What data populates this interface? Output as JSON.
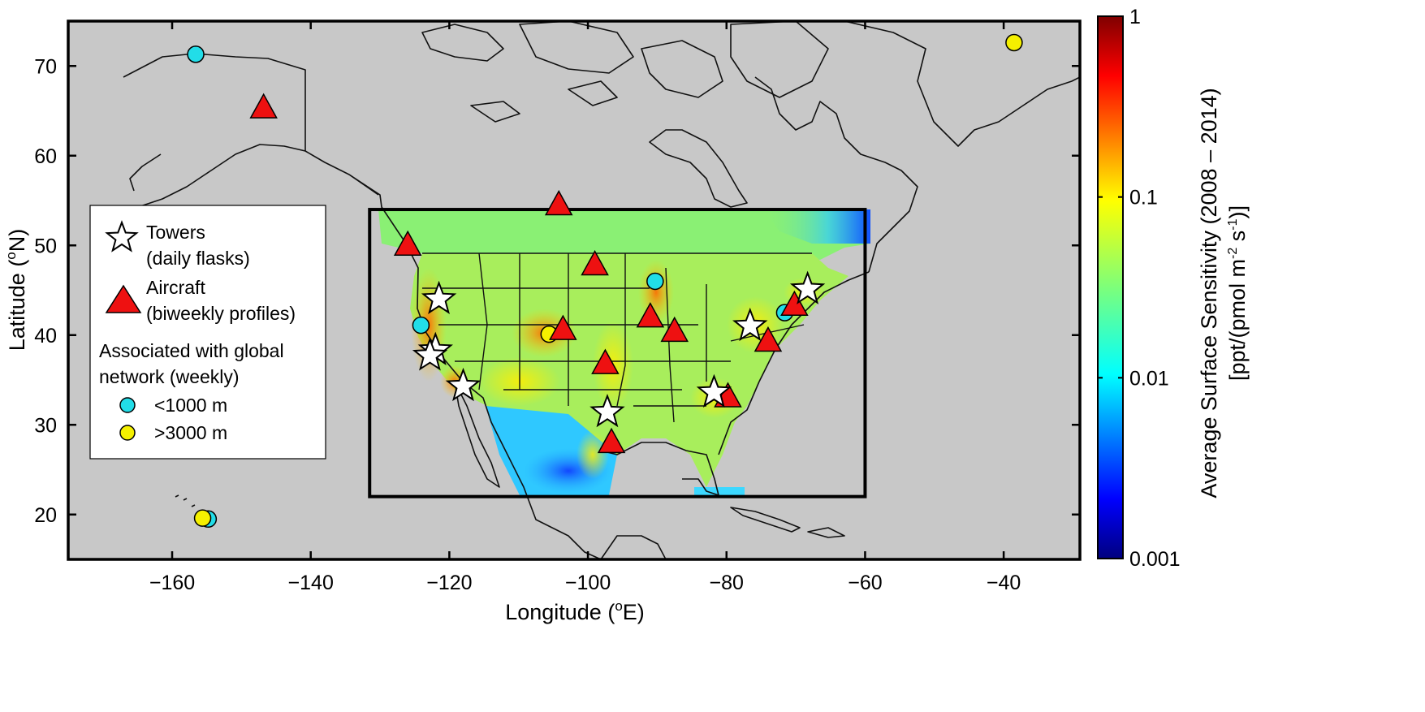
{
  "map": {
    "xaxis": {
      "title_pre": "Longitude (",
      "title_sup": "o",
      "title_post": "E)",
      "ticks": [
        -160,
        -140,
        -120,
        -100,
        -80,
        -60,
        -40
      ],
      "tick_labels": [
        "−160",
        "−140",
        "−120",
        "−100",
        "−80",
        "−60",
        "−40"
      ],
      "range": [
        -175,
        -29
      ]
    },
    "yaxis": {
      "title_pre": "Latitude (",
      "title_sup": "o",
      "title_post": "N)",
      "ticks": [
        20,
        30,
        40,
        50,
        60,
        70
      ],
      "tick_labels": [
        "20",
        "30",
        "40",
        "50",
        "60",
        "70"
      ],
      "range": [
        15,
        75
      ]
    },
    "domain_box": {
      "lon": [
        -131.5,
        -60
      ],
      "lat": [
        22,
        54
      ]
    },
    "background_color": "#c8c8c8"
  },
  "colorbar": {
    "scale": "log",
    "ticks": [
      1,
      0.1,
      0.01,
      0.001
    ],
    "tick_labels": [
      "1",
      "0.1",
      "0.01",
      "0.001"
    ],
    "title_line1": "Average Surface Sensitivity (2008 – 2014)",
    "title_line2_pre": "[ppt/(pmol m",
    "title_line2_sup1": "-2",
    "title_line2_mid": " s",
    "title_line2_sup2": "-1",
    "title_line2_post": ")]",
    "colormap": "jet"
  },
  "legend": {
    "towers_label": "Towers",
    "towers_sub": "(daily flasks)",
    "aircraft_label": "Aircraft",
    "aircraft_sub": "(biweekly profiles)",
    "global_line1": "Associated with global",
    "global_line2": "network (weekly)",
    "low_label": "<1000 m",
    "high_label": ">3000 m",
    "colors": {
      "low": "#22dde8",
      "high": "#f5f000",
      "aircraft": "#ee1111",
      "tower": "#ffffff"
    }
  },
  "sites": {
    "towers": [
      {
        "lon": -121.5,
        "lat": 44.0
      },
      {
        "lon": -122.0,
        "lat": 38.3
      },
      {
        "lon": -122.8,
        "lat": 37.7
      },
      {
        "lon": -118.0,
        "lat": 34.3
      },
      {
        "lon": -97.2,
        "lat": 31.4
      },
      {
        "lon": -81.8,
        "lat": 33.6
      },
      {
        "lon": -76.6,
        "lat": 41.0
      },
      {
        "lon": -68.3,
        "lat": 45.1
      }
    ],
    "aircraft": [
      {
        "lon": -146.8,
        "lat": 65.3
      },
      {
        "lon": -104.2,
        "lat": 54.5
      },
      {
        "lon": -126.0,
        "lat": 50.0
      },
      {
        "lon": -99.0,
        "lat": 47.8
      },
      {
        "lon": -91.0,
        "lat": 42.0
      },
      {
        "lon": -87.5,
        "lat": 40.4
      },
      {
        "lon": -103.6,
        "lat": 40.6
      },
      {
        "lon": -97.5,
        "lat": 36.8
      },
      {
        "lon": -74.0,
        "lat": 39.3
      },
      {
        "lon": -70.2,
        "lat": 43.3
      },
      {
        "lon": -79.8,
        "lat": 33.1
      },
      {
        "lon": -96.6,
        "lat": 28.0
      }
    ],
    "global_low": [
      {
        "lon": -156.6,
        "lat": 71.3
      },
      {
        "lon": -124.1,
        "lat": 41.1
      },
      {
        "lon": -90.3,
        "lat": 46.0
      },
      {
        "lon": -71.6,
        "lat": 42.5
      },
      {
        "lon": -154.8,
        "lat": 19.5
      }
    ],
    "global_high": [
      {
        "lon": -105.6,
        "lat": 40.1
      },
      {
        "lon": -155.6,
        "lat": 19.6
      },
      {
        "lon": -38.5,
        "lat": 72.6
      }
    ]
  }
}
